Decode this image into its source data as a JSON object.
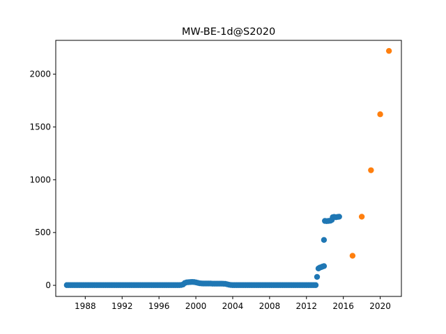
{
  "chart_data": {
    "type": "scatter",
    "title": "MW-BE-1d@S2020",
    "xlabel": "",
    "ylabel": "",
    "xlim": [
      1984.8,
      2022.3
    ],
    "ylim": [
      -105,
      2320
    ],
    "x_ticks": [
      1988,
      1992,
      1996,
      2000,
      2004,
      2008,
      2012,
      2016,
      2020
    ],
    "y_ticks": [
      0,
      500,
      1000,
      1500,
      2000
    ],
    "grid": false,
    "legend": "none",
    "series": [
      {
        "color": "#1f77b4",
        "points": [
          [
            1986.0,
            2
          ],
          [
            1986.2,
            2
          ],
          [
            1986.4,
            2
          ],
          [
            1986.6,
            2
          ],
          [
            1986.8,
            2
          ],
          [
            1987.0,
            2
          ],
          [
            1987.2,
            2
          ],
          [
            1987.4,
            2
          ],
          [
            1987.6,
            2
          ],
          [
            1987.8,
            2
          ],
          [
            1988.0,
            2
          ],
          [
            1988.2,
            2
          ],
          [
            1988.4,
            2
          ],
          [
            1988.6,
            2
          ],
          [
            1988.8,
            2
          ],
          [
            1989.0,
            2
          ],
          [
            1989.2,
            2
          ],
          [
            1989.4,
            2
          ],
          [
            1989.6,
            2
          ],
          [
            1989.8,
            2
          ],
          [
            1990.0,
            2
          ],
          [
            1990.2,
            2
          ],
          [
            1990.4,
            2
          ],
          [
            1990.6,
            2
          ],
          [
            1990.8,
            2
          ],
          [
            1991.0,
            2
          ],
          [
            1991.2,
            2
          ],
          [
            1991.4,
            2
          ],
          [
            1991.6,
            2
          ],
          [
            1991.8,
            2
          ],
          [
            1992.0,
            2
          ],
          [
            1992.2,
            2
          ],
          [
            1992.4,
            2
          ],
          [
            1992.6,
            2
          ],
          [
            1992.8,
            2
          ],
          [
            1993.0,
            2
          ],
          [
            1993.2,
            2
          ],
          [
            1993.4,
            2
          ],
          [
            1993.6,
            2
          ],
          [
            1993.8,
            2
          ],
          [
            1994.0,
            2
          ],
          [
            1994.2,
            2
          ],
          [
            1994.4,
            2
          ],
          [
            1994.6,
            2
          ],
          [
            1994.8,
            2
          ],
          [
            1995.0,
            2
          ],
          [
            1995.2,
            2
          ],
          [
            1995.4,
            2
          ],
          [
            1995.6,
            2
          ],
          [
            1995.8,
            2
          ],
          [
            1996.0,
            2
          ],
          [
            1996.2,
            2
          ],
          [
            1996.4,
            2
          ],
          [
            1996.6,
            2
          ],
          [
            1996.8,
            2
          ],
          [
            1997.0,
            2
          ],
          [
            1997.2,
            2
          ],
          [
            1997.4,
            2
          ],
          [
            1997.6,
            2
          ],
          [
            1997.8,
            2
          ],
          [
            1998.0,
            2
          ],
          [
            1998.2,
            2
          ],
          [
            1998.4,
            3
          ],
          [
            1998.6,
            8
          ],
          [
            1998.8,
            22
          ],
          [
            1999.0,
            28
          ],
          [
            1999.2,
            30
          ],
          [
            1999.4,
            31
          ],
          [
            1999.6,
            32
          ],
          [
            1999.8,
            31
          ],
          [
            2000.0,
            28
          ],
          [
            2000.2,
            24
          ],
          [
            2000.4,
            20
          ],
          [
            2000.6,
            18
          ],
          [
            2000.8,
            17
          ],
          [
            2001.0,
            17
          ],
          [
            2001.2,
            17
          ],
          [
            2001.4,
            17
          ],
          [
            2001.6,
            17
          ],
          [
            2001.8,
            16
          ],
          [
            2002.0,
            16
          ],
          [
            2002.2,
            16
          ],
          [
            2002.4,
            16
          ],
          [
            2002.6,
            16
          ],
          [
            2002.8,
            16
          ],
          [
            2003.0,
            15
          ],
          [
            2003.2,
            14
          ],
          [
            2003.4,
            10
          ],
          [
            2003.6,
            6
          ],
          [
            2003.8,
            3
          ],
          [
            2004.0,
            2
          ],
          [
            2004.2,
            2
          ],
          [
            2004.4,
            2
          ],
          [
            2004.6,
            2
          ],
          [
            2004.8,
            2
          ],
          [
            2005.0,
            2
          ],
          [
            2005.2,
            2
          ],
          [
            2005.4,
            2
          ],
          [
            2005.6,
            2
          ],
          [
            2005.8,
            2
          ],
          [
            2006.0,
            2
          ],
          [
            2006.2,
            2
          ],
          [
            2006.4,
            2
          ],
          [
            2006.6,
            2
          ],
          [
            2006.8,
            2
          ],
          [
            2007.0,
            2
          ],
          [
            2007.2,
            2
          ],
          [
            2007.4,
            2
          ],
          [
            2007.6,
            2
          ],
          [
            2007.8,
            2
          ],
          [
            2008.0,
            2
          ],
          [
            2008.2,
            2
          ],
          [
            2008.4,
            2
          ],
          [
            2008.6,
            2
          ],
          [
            2008.8,
            2
          ],
          [
            2009.0,
            2
          ],
          [
            2009.2,
            2
          ],
          [
            2009.4,
            2
          ],
          [
            2009.6,
            2
          ],
          [
            2009.8,
            2
          ],
          [
            2010.0,
            2
          ],
          [
            2010.2,
            2
          ],
          [
            2010.4,
            2
          ],
          [
            2010.6,
            2
          ],
          [
            2010.8,
            2
          ],
          [
            2011.0,
            2
          ],
          [
            2011.2,
            2
          ],
          [
            2011.4,
            2
          ],
          [
            2011.6,
            2
          ],
          [
            2011.8,
            2
          ],
          [
            2012.0,
            2
          ],
          [
            2012.2,
            2
          ],
          [
            2012.4,
            2
          ],
          [
            2012.6,
            2
          ],
          [
            2012.8,
            2
          ],
          [
            2013.0,
            2
          ],
          [
            2013.15,
            80
          ],
          [
            2013.3,
            160
          ],
          [
            2013.45,
            168
          ],
          [
            2013.6,
            172
          ],
          [
            2013.75,
            178
          ],
          [
            2013.9,
            182
          ],
          [
            2013.9,
            430
          ],
          [
            2014.0,
            610
          ],
          [
            2014.2,
            608
          ],
          [
            2014.4,
            610
          ],
          [
            2014.6,
            612
          ],
          [
            2014.75,
            620
          ],
          [
            2014.85,
            645
          ],
          [
            2015.0,
            648
          ],
          [
            2015.2,
            645
          ],
          [
            2015.4,
            648
          ],
          [
            2015.55,
            650
          ]
        ]
      },
      {
        "color": "#ff7f0e",
        "points": [
          [
            2017.0,
            280
          ],
          [
            2018.0,
            650
          ],
          [
            2019.0,
            1090
          ],
          [
            2020.0,
            1620
          ],
          [
            2020.95,
            2220
          ]
        ]
      }
    ]
  }
}
